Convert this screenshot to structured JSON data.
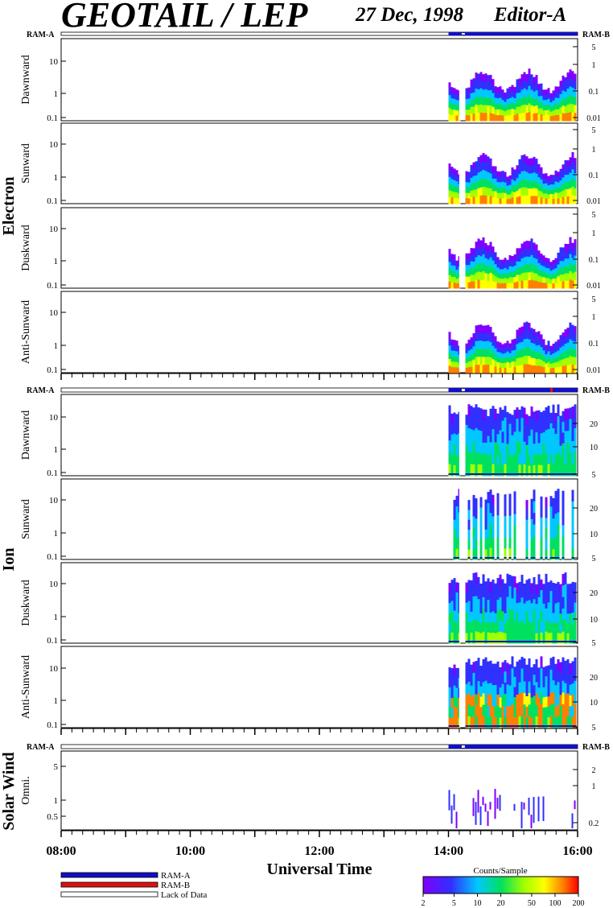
{
  "header": {
    "title": "GEOTAIL / LEP",
    "date": "27 Dec, 1998",
    "editor": "Editor-A"
  },
  "ram_labels": {
    "left": "RAM-A",
    "right": "RAM-B"
  },
  "groups": {
    "electron": "Electron",
    "ion": "Ion",
    "solar_wind": "Solar Wind"
  },
  "panel_labels": {
    "e1": "Dawnward",
    "e2": "Sunward",
    "e3": "Duskward",
    "e4": "Anti-Sunward",
    "i1": "Dawnward",
    "i2": "Sunward",
    "i3": "Duskward",
    "i4": "Anti-Sunward",
    "sw": "Omni."
  },
  "axis": {
    "xlabel": "Universal Time",
    "time_ticks": [
      "08:00",
      "10:00",
      "12:00",
      "14:00",
      "16:00"
    ]
  },
  "legend": {
    "ram_a": "RAM-A",
    "ram_b": "RAM-B",
    "lack": "Lack of Data",
    "colorbar_title": "Counts/Sample",
    "colorbar_ticks": [
      "2",
      "5",
      "10",
      "20",
      "50",
      "100",
      "200"
    ]
  },
  "colors": {
    "ram_a": "#1010c8",
    "ram_b": "#e01010",
    "lack": "#ffffff"
  },
  "chart_data": {
    "type": "heatmap",
    "title": "GEOTAIL / LEP",
    "xlabel": "Universal Time",
    "x_range": [
      "08:00",
      "16:00"
    ],
    "data_start": "14:00",
    "data_gap": [
      "14:10",
      "14:15"
    ],
    "colorbar": {
      "label": "Counts/Sample",
      "range": [
        2,
        200
      ],
      "scale": "log"
    },
    "panels": [
      {
        "group": "Electron",
        "name": "Dawnward",
        "left_ticks": [
          "10",
          "1",
          "0.1"
        ],
        "right_ticks": [
          "5",
          "1",
          "0.1",
          "0.01"
        ]
      },
      {
        "group": "Electron",
        "name": "Sunward",
        "left_ticks": [
          "10",
          "1",
          "0.1"
        ],
        "right_ticks": [
          "5",
          "1",
          "0.1",
          "0.01"
        ]
      },
      {
        "group": "Electron",
        "name": "Duskward",
        "left_ticks": [
          "10",
          "1",
          "0.1"
        ],
        "right_ticks": [
          "5",
          "1",
          "0.1",
          "0.01"
        ]
      },
      {
        "group": "Electron",
        "name": "Anti-Sunward",
        "left_ticks": [
          "10",
          "1",
          "0.1"
        ],
        "right_ticks": [
          "5",
          "1",
          "0.1",
          "0.01"
        ]
      },
      {
        "group": "Ion",
        "name": "Dawnward",
        "left_ticks": [
          "10",
          "1",
          "0.1"
        ],
        "right_ticks": [
          "20",
          "10",
          "5"
        ]
      },
      {
        "group": "Ion",
        "name": "Sunward",
        "left_ticks": [
          "10",
          "1",
          "0.1"
        ],
        "right_ticks": [
          "20",
          "10",
          "5"
        ]
      },
      {
        "group": "Ion",
        "name": "Duskward",
        "left_ticks": [
          "10",
          "1",
          "0.1"
        ],
        "right_ticks": [
          "20",
          "10",
          "5"
        ]
      },
      {
        "group": "Ion",
        "name": "Anti-Sunward",
        "left_ticks": [
          "10",
          "1",
          "0.1"
        ],
        "right_ticks": [
          "20",
          "10",
          "5"
        ]
      },
      {
        "group": "Solar Wind",
        "name": "Omni.",
        "left_ticks": [
          "5",
          "1",
          "0.5"
        ],
        "right_ticks": [
          "2",
          "1",
          "0.2"
        ]
      }
    ]
  }
}
